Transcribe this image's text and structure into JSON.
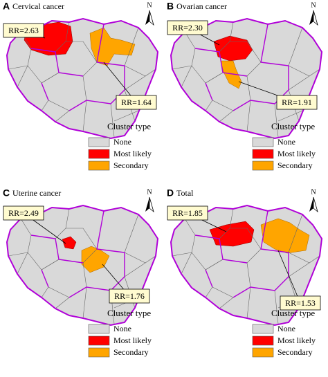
{
  "panels": [
    {
      "letter": "A",
      "title": "Cervical cancer",
      "north": "N",
      "callouts": [
        "RR=2.63",
        "RR=1.64"
      ],
      "legend": {
        "title": "Cluster type",
        "items": [
          "None",
          "Most likely",
          "Secondary"
        ]
      }
    },
    {
      "letter": "B",
      "title": "Ovarian cancer",
      "north": "N",
      "callouts": [
        "RR=2.30",
        "RR=1.91"
      ],
      "legend": {
        "title": "Cluster type",
        "items": [
          "None",
          "Most likely",
          "Secondary"
        ]
      }
    },
    {
      "letter": "C",
      "title": "Uterine cancer",
      "north": "N",
      "callouts": [
        "RR=2.49",
        "RR=1.76"
      ],
      "legend": {
        "title": "Cluster type",
        "items": [
          "None",
          "Most likely",
          "Secondary"
        ]
      }
    },
    {
      "letter": "D",
      "title": "Total",
      "north": "N",
      "callouts": [
        "RR=1.85",
        "RR=1.53"
      ],
      "legend": {
        "title": "Cluster type",
        "items": [
          "None",
          "Most likely",
          "Secondary"
        ]
      }
    }
  ]
}
